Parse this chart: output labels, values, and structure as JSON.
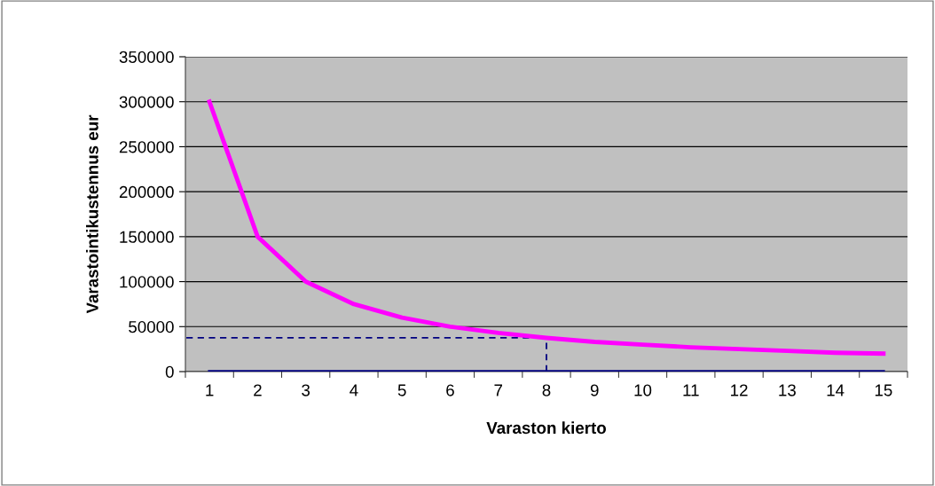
{
  "chart_data": {
    "type": "line",
    "xlabel": "Varaston kierto",
    "ylabel": "Varastointikustennus eur",
    "categories": [
      "1",
      "2",
      "3",
      "4",
      "5",
      "6",
      "7",
      "8",
      "9",
      "10",
      "11",
      "12",
      "13",
      "14",
      "15"
    ],
    "series": [
      {
        "color": "#ff00ff",
        "values": [
          300000,
          150000,
          100000,
          75000,
          60000,
          50000,
          43000,
          37500,
          33000,
          30000,
          27000,
          25000,
          23000,
          21000,
          20000
        ]
      },
      {
        "color": "#000080",
        "values": [
          0,
          0,
          0,
          0,
          0,
          0,
          0,
          0,
          0,
          0,
          0,
          0,
          0,
          0,
          0
        ]
      }
    ],
    "ylim": [
      0,
      350000
    ],
    "yticks": [
      0,
      50000,
      100000,
      150000,
      200000,
      250000,
      300000,
      350000
    ],
    "grid": "y",
    "marker": "none",
    "ref_lines": [
      {
        "axis": "y",
        "value": 37500,
        "color": "#000080",
        "line_style": "dashed"
      },
      {
        "axis": "x",
        "value": "8",
        "color": "#000080",
        "line_style": "dashed"
      }
    ]
  }
}
